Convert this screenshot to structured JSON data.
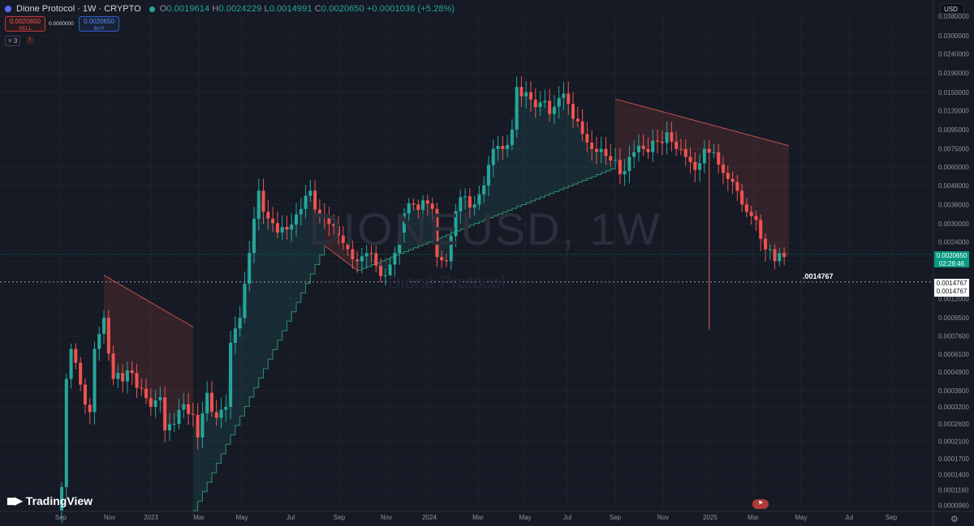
{
  "header": {
    "symbol": "Dione Protocol · 1W · CRYPTO",
    "ohlc": [
      {
        "k": "O",
        "v": "0.0019614"
      },
      {
        "k": "H",
        "v": "0.0024229"
      },
      {
        "k": "L",
        "v": "0.0014991"
      },
      {
        "k": "C",
        "v": "0.0020650"
      },
      {
        "k": "",
        "v": "+0.0001036 (+5.28%)"
      }
    ],
    "sell_price": "0.0020650",
    "sell_label": "SELL",
    "spread": "0.0000000",
    "buy_price": "0.0020650",
    "buy_label": "BUY",
    "indicator_count": "3"
  },
  "currency": "USD",
  "watermark": {
    "symbol": "DIONEUSD, 1W",
    "name": "Dione Protocol"
  },
  "last_price": {
    "value": "0.0020650",
    "countdown": "02:28:46"
  },
  "crosshair": {
    "label": ".0014767",
    "badge1": "0.0014767",
    "badge2": "0.0014767",
    "value": 0.0014767
  },
  "brand": "TradingView",
  "chart_data": {
    "type": "candlestick",
    "timeframe": "1W",
    "y_scale": "log",
    "ylim": [
      9e-05,
      0.038
    ],
    "grid": true,
    "y_ticks": [
      "0.0380000",
      "0.0300000",
      "0.0240000",
      "0.0190000",
      "0.0150000",
      "0.0120000",
      "0.0095000",
      "0.0075000",
      "0.0060000",
      "0.0048000",
      "0.0038000",
      "0.0030000",
      "0.0024000",
      "0.0019000",
      "0.0012000",
      "0.0009500",
      "0.0007600",
      "0.0006100",
      "0.0004900",
      "0.0003900",
      "0.0003200",
      "0.0002600",
      "0.0002100",
      "0.0001700",
      "0.0001400",
      "0.0001160",
      "0.0000960"
    ],
    "x_ticks": [
      "Sep",
      "Nov",
      "2023",
      "Mar",
      "May",
      "Jul",
      "Sep",
      "Nov",
      "2024",
      "Mar",
      "May",
      "Jul",
      "Sep",
      "Nov",
      "2025",
      "Mar",
      "May",
      "Jul",
      "Sep"
    ],
    "close_anchors": [
      [
        0,
        0.00012
      ],
      [
        1,
        0.00045
      ],
      [
        2,
        0.00065
      ],
      [
        4,
        0.00042
      ],
      [
        6,
        0.0003
      ],
      [
        7,
        0.00065
      ],
      [
        9,
        0.00095
      ],
      [
        11,
        0.00045
      ],
      [
        14,
        0.0005
      ],
      [
        17,
        0.0004
      ],
      [
        19,
        0.00032
      ],
      [
        21,
        0.00036
      ],
      [
        22,
        0.00024
      ],
      [
        24,
        0.00026
      ],
      [
        26,
        0.00033
      ],
      [
        28,
        0.00029
      ],
      [
        29,
        0.00022
      ],
      [
        31,
        0.00038
      ],
      [
        33,
        0.00028
      ],
      [
        35,
        0.00032
      ],
      [
        36,
        0.0007
      ],
      [
        38,
        0.00095
      ],
      [
        40,
        0.0021
      ],
      [
        42,
        0.0045
      ],
      [
        44,
        0.0032
      ],
      [
        46,
        0.0027
      ],
      [
        48,
        0.0028
      ],
      [
        51,
        0.0036
      ],
      [
        53,
        0.0045
      ],
      [
        55,
        0.0034
      ],
      [
        57,
        0.003
      ],
      [
        59,
        0.0026
      ],
      [
        61,
        0.0022
      ],
      [
        63,
        0.0019
      ],
      [
        65,
        0.0021
      ],
      [
        67,
        0.0018
      ],
      [
        69,
        0.0016
      ],
      [
        71,
        0.0021
      ],
      [
        73,
        0.0034
      ],
      [
        75,
        0.0038
      ],
      [
        77,
        0.004
      ],
      [
        79,
        0.0036
      ],
      [
        80,
        0.002
      ],
      [
        82,
        0.0019
      ],
      [
        84,
        0.0035
      ],
      [
        86,
        0.0042
      ],
      [
        88,
        0.0038
      ],
      [
        90,
        0.0048
      ],
      [
        92,
        0.0075
      ],
      [
        94,
        0.0075
      ],
      [
        96,
        0.0095
      ],
      [
        97,
        0.016
      ],
      [
        99,
        0.015
      ],
      [
        101,
        0.0125
      ],
      [
        103,
        0.0135
      ],
      [
        104,
        0.0115
      ],
      [
        106,
        0.014
      ],
      [
        108,
        0.013
      ],
      [
        110,
        0.0105
      ],
      [
        111,
        0.009
      ],
      [
        113,
        0.0075
      ],
      [
        115,
        0.0075
      ],
      [
        117,
        0.0065
      ],
      [
        119,
        0.0055
      ],
      [
        121,
        0.0068
      ],
      [
        123,
        0.0078
      ],
      [
        125,
        0.0072
      ],
      [
        127,
        0.0082
      ],
      [
        129,
        0.0092
      ],
      [
        131,
        0.0075
      ],
      [
        133,
        0.0068
      ],
      [
        135,
        0.0058
      ],
      [
        137,
        0.0075
      ],
      [
        139,
        0.0072
      ],
      [
        140,
        0.0062
      ],
      [
        142,
        0.0052
      ],
      [
        144,
        0.0045
      ],
      [
        145,
        0.0038
      ],
      [
        147,
        0.0033
      ],
      [
        149,
        0.0025
      ],
      [
        151,
        0.0022
      ],
      [
        152,
        0.0019
      ],
      [
        153,
        0.0021
      ],
      [
        154,
        0.002
      ]
    ],
    "supertrend": [
      {
        "trend": "down",
        "from": 9,
        "to": 28,
        "start": 0.0016,
        "end": 0.00085
      },
      {
        "trend": "up",
        "from": 28,
        "to": 56,
        "start": 9e-05,
        "end": 0.0023
      },
      {
        "trend": "down",
        "from": 56,
        "to": 63,
        "start": 0.0023,
        "end": 0.0017
      },
      {
        "trend": "up",
        "from": 63,
        "to": 118,
        "start": 0.0017,
        "end": 0.006
      },
      {
        "trend": "down",
        "from": 118,
        "to": 155,
        "start": 0.0138,
        "end": 0.0078
      }
    ],
    "last": {
      "close": 0.002065
    },
    "label": "Dione Protocol 1W"
  }
}
